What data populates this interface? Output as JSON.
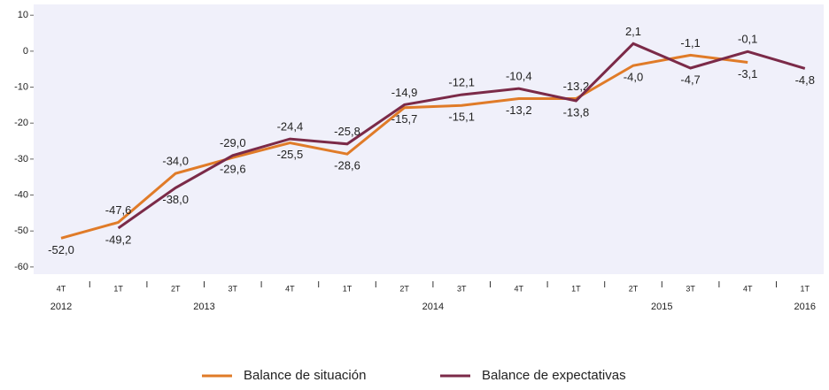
{
  "chart_data": {
    "type": "line",
    "categories": [
      "4T",
      "1T",
      "2T",
      "3T",
      "4T",
      "1T",
      "2T",
      "3T",
      "4T",
      "1T",
      "2T",
      "3T",
      "4T",
      "1T"
    ],
    "groups": [
      {
        "label": "2012",
        "count": 1
      },
      {
        "label": "2013",
        "count": 4
      },
      {
        "label": "2014",
        "count": 4
      },
      {
        "label": "2015",
        "count": 4
      },
      {
        "label": "2016",
        "count": 1
      }
    ],
    "series": [
      {
        "name": "Balance de situación",
        "color": "#e07b28",
        "values": [
          -52.0,
          -47.6,
          -34.0,
          -29.6,
          -25.5,
          -28.6,
          -15.7,
          -15.1,
          -13.2,
          -13.2,
          -4.0,
          -1.1,
          -3.1,
          null
        ],
        "value_labels": [
          "-52,0",
          "-47,6",
          "-34,0",
          "-29,6",
          "-25,5",
          "-28,6",
          "-15,7",
          "-15,1",
          "-13,2",
          "-13,2",
          "-4,0",
          "-1,1",
          "-3,1",
          null
        ]
      },
      {
        "name": "Balance de expectativas",
        "color": "#7b2a48",
        "values": [
          null,
          -49.2,
          -38.0,
          -29.0,
          -24.4,
          -25.8,
          -14.9,
          -12.1,
          -10.4,
          -13.8,
          2.1,
          -4.7,
          -0.1,
          -4.8
        ],
        "value_labels": [
          null,
          "-49,2",
          "-38,0",
          "-29,0",
          "-24,4",
          "-25,8",
          "-14,9",
          "-12,1",
          "-10,4",
          "-13,8",
          "2,1",
          "-4,7",
          "-0,1",
          "-4,8"
        ]
      }
    ],
    "ylim": [
      -62,
      13
    ],
    "yticks": [
      10,
      0,
      -10,
      -20,
      -30,
      -40,
      -50,
      -60
    ],
    "legend": "bottom"
  }
}
